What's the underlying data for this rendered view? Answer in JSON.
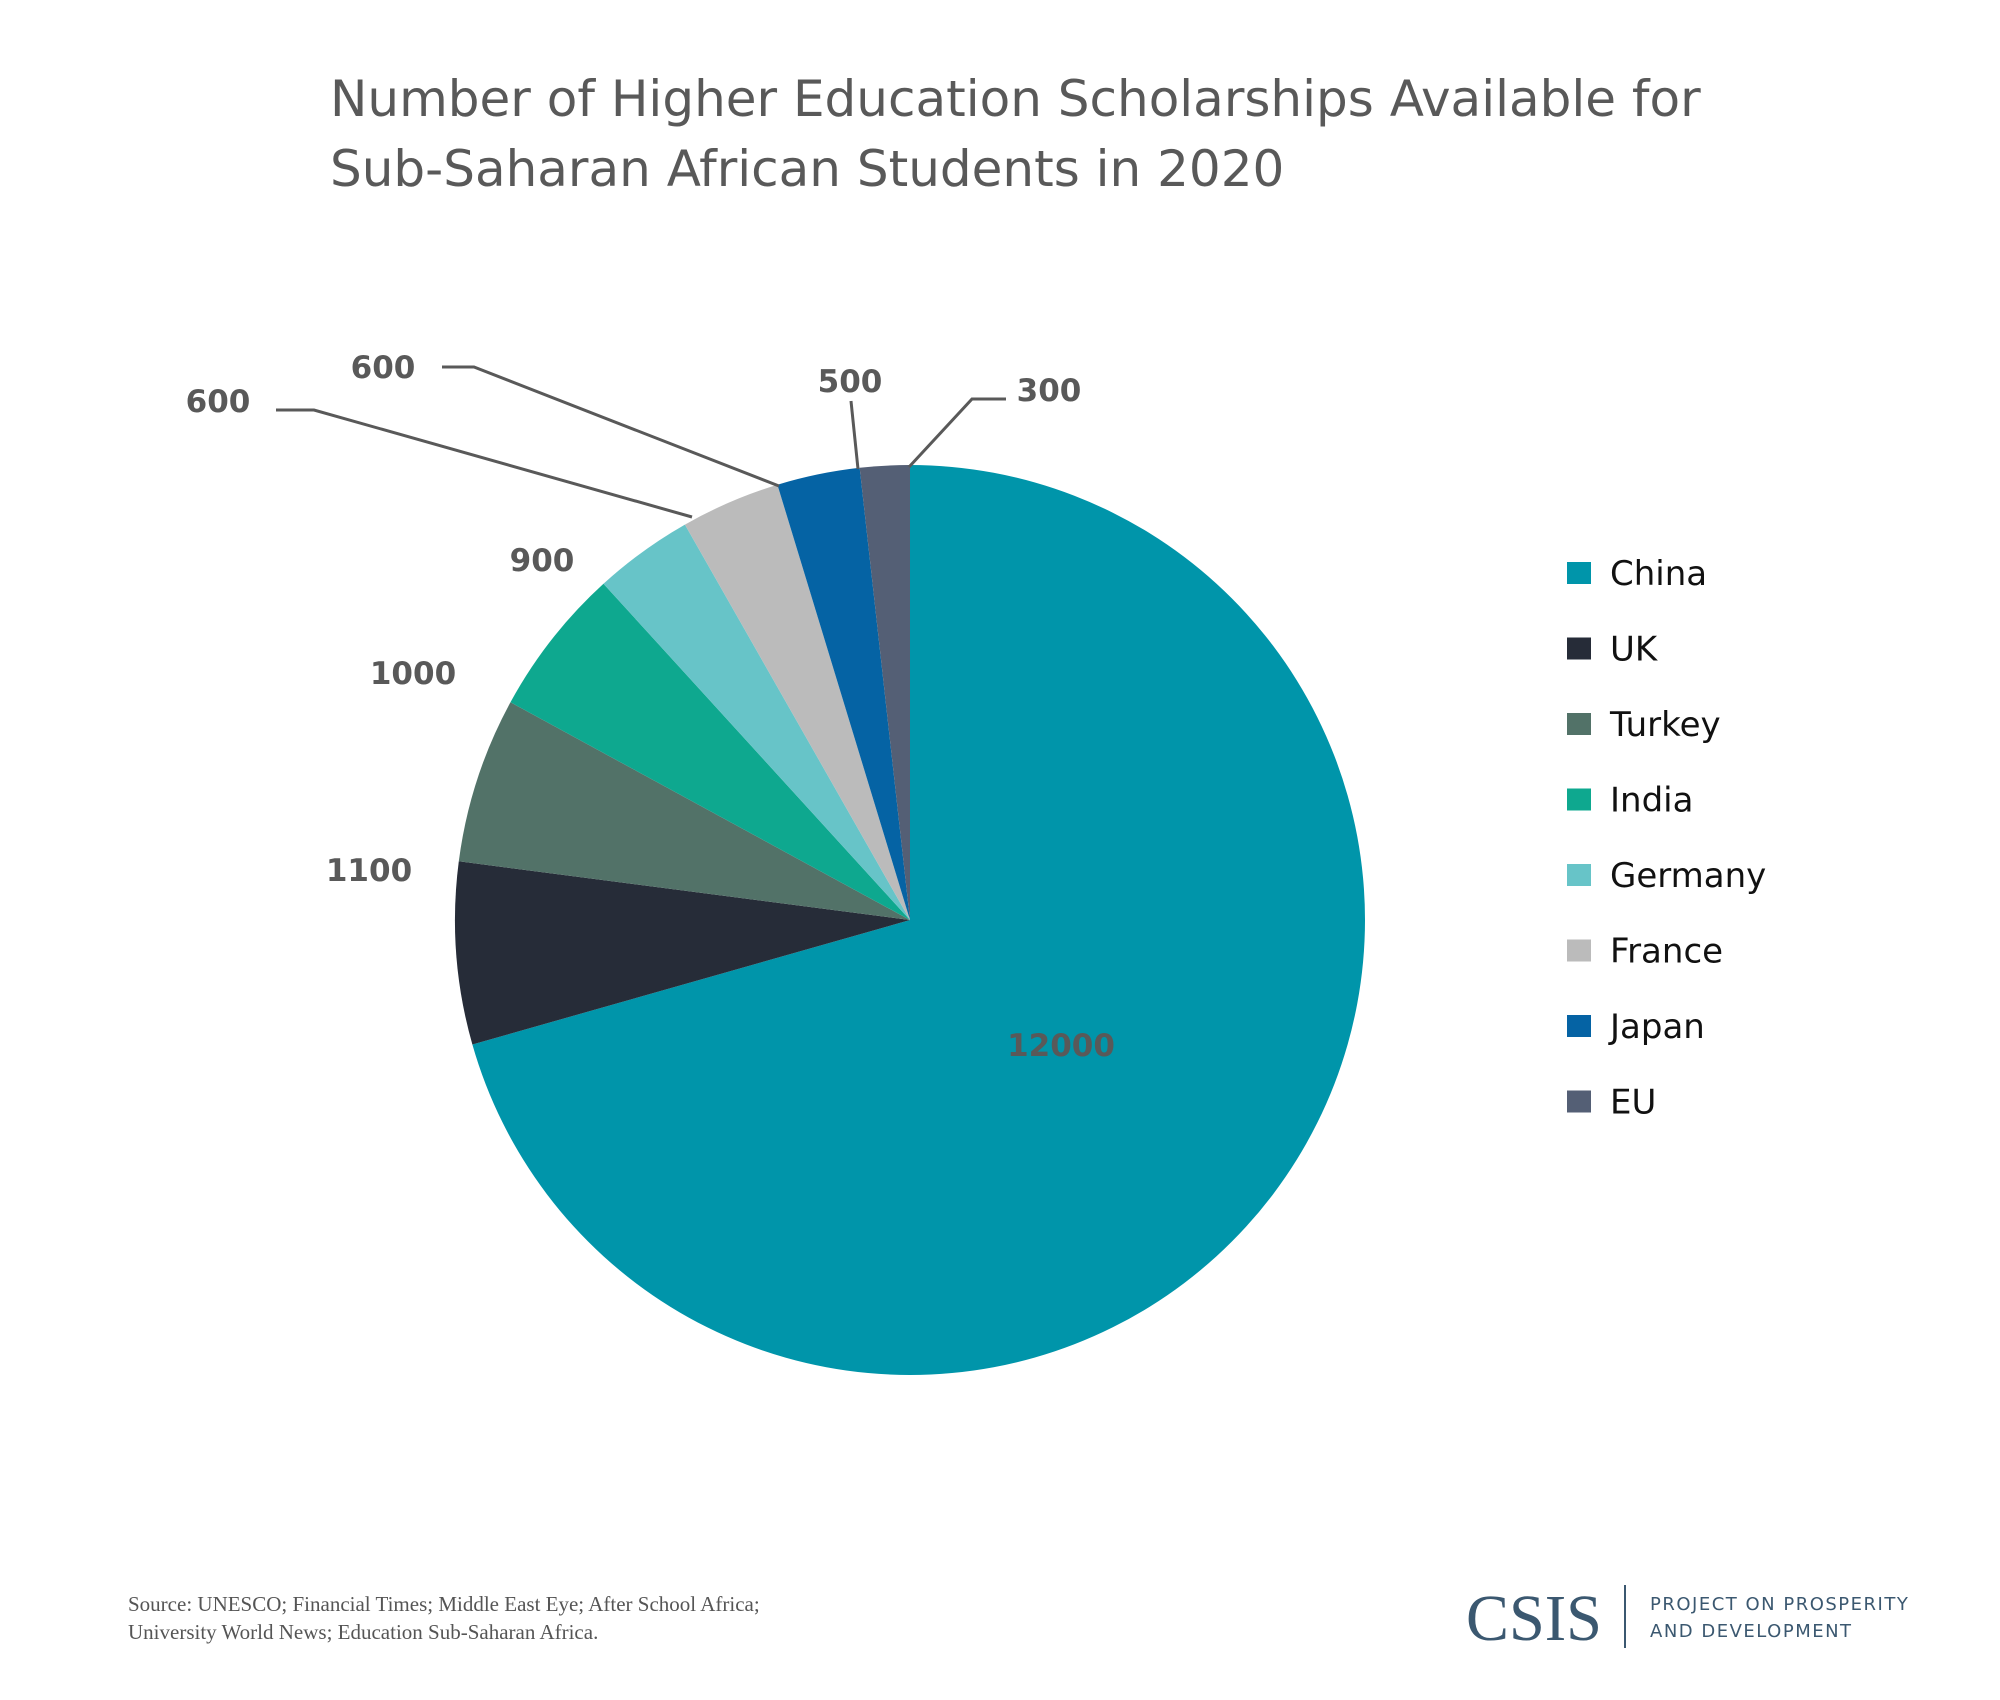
{
  "chart_data": {
    "type": "pie",
    "title": [
      "Number of Higher Education Scholarships Available for",
      "Sub-Saharan African Students in 2020"
    ],
    "categories": [
      "China",
      "UK",
      "Turkey",
      "India",
      "Germany",
      "France",
      "Japan",
      "EU"
    ],
    "values": [
      12000,
      1100,
      1000,
      900,
      600,
      600,
      500,
      300
    ],
    "data_labels": [
      "12000",
      "1100",
      "1000",
      "900",
      "600",
      "600",
      "500",
      "300"
    ],
    "colors": [
      "#0095aa",
      "#262c38",
      "#527268",
      "#0ea88f",
      "#67c4c8",
      "#bbbbbb",
      "#0563a4",
      "#545f75"
    ],
    "start": "top",
    "direction": "clockwise",
    "legend_position": "right"
  },
  "footer": {
    "source": [
      "Source: UNESCO; Financial Times; Middle East Eye; After School Africa;",
      "University World News; Education Sub-Saharan Africa."
    ],
    "logo": "CSIS",
    "project": [
      "PROJECT ON PROSPERITY",
      "AND DEVELOPMENT"
    ]
  }
}
